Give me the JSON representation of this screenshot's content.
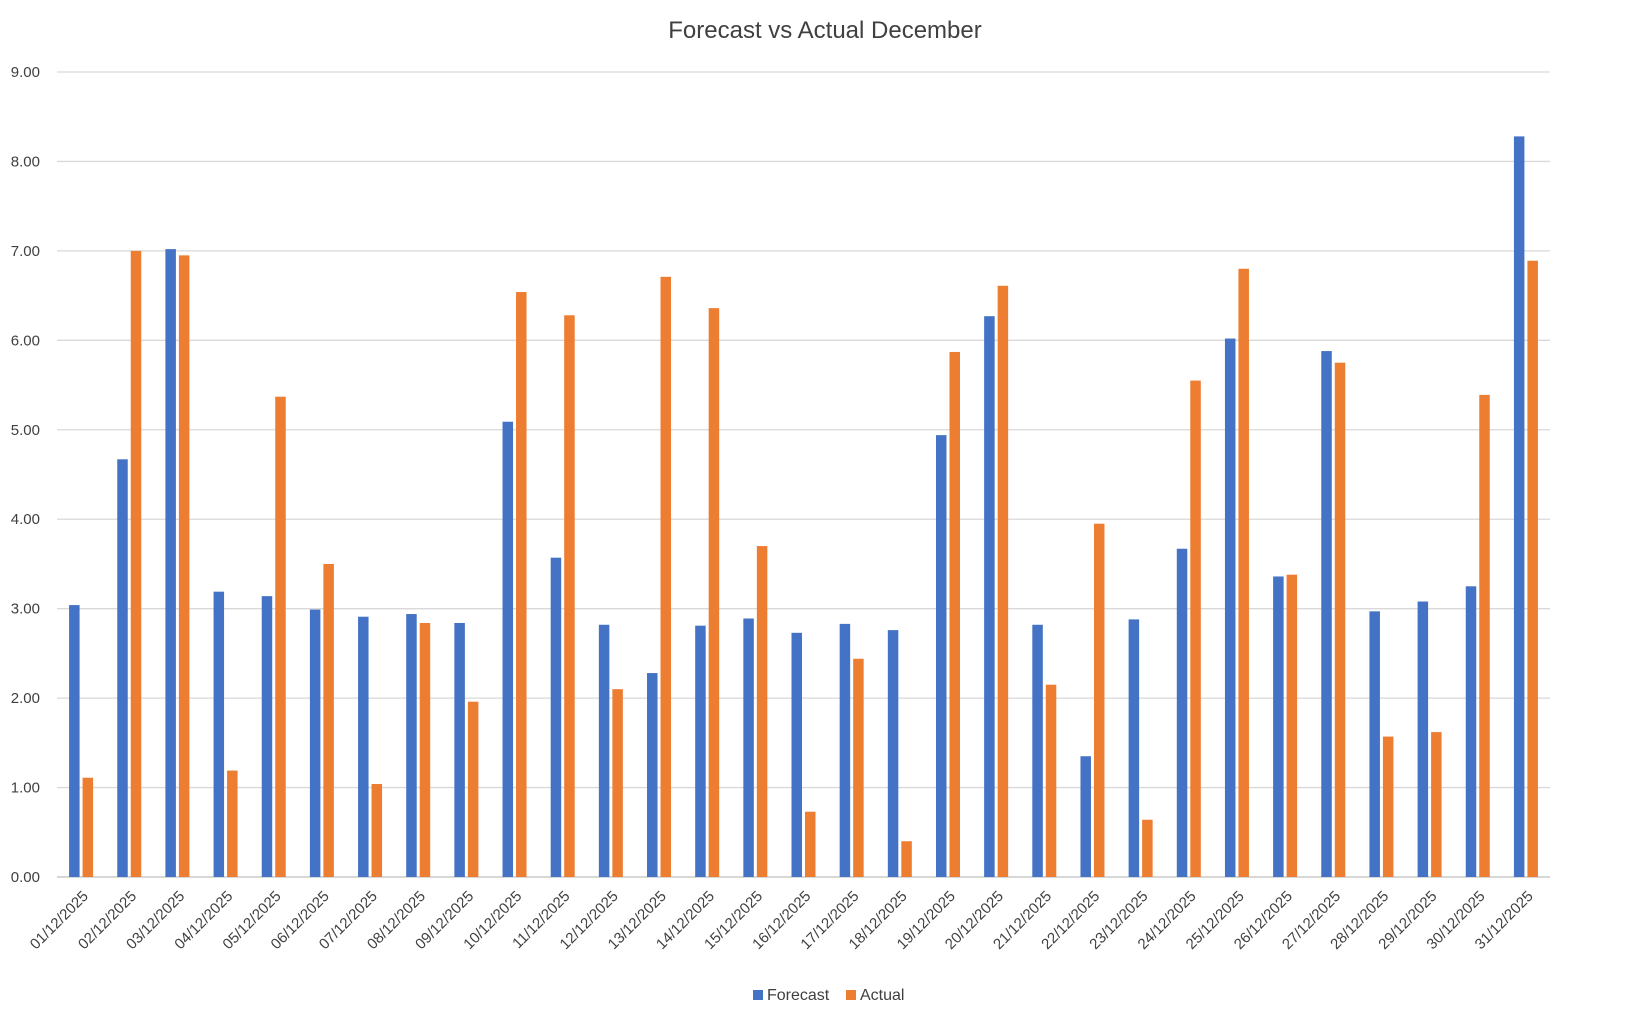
{
  "chart_data": {
    "type": "bar",
    "title": "Forecast vs Actual December",
    "xlabel": "",
    "ylabel": "",
    "ylim": [
      0,
      9
    ],
    "yticks": [
      "0.00",
      "1.00",
      "2.00",
      "3.00",
      "4.00",
      "5.00",
      "6.00",
      "7.00",
      "8.00",
      "9.00"
    ],
    "grid": true,
    "legend_position": "bottom",
    "categories": [
      "01/12/2025",
      "02/12/2025",
      "03/12/2025",
      "04/12/2025",
      "05/12/2025",
      "06/12/2025",
      "07/12/2025",
      "08/12/2025",
      "09/12/2025",
      "10/12/2025",
      "11/12/2025",
      "12/12/2025",
      "13/12/2025",
      "14/12/2025",
      "15/12/2025",
      "16/12/2025",
      "17/12/2025",
      "18/12/2025",
      "19/12/2025",
      "20/12/2025",
      "21/12/2025",
      "22/12/2025",
      "23/12/2025",
      "24/12/2025",
      "25/12/2025",
      "26/12/2025",
      "27/12/2025",
      "28/12/2025",
      "29/12/2025",
      "30/12/2025",
      "31/12/2025"
    ],
    "series": [
      {
        "name": "Forecast",
        "color": "#4472c4",
        "values": [
          3.04,
          4.67,
          7.02,
          3.19,
          3.14,
          2.99,
          2.91,
          2.94,
          2.84,
          5.09,
          3.57,
          2.82,
          2.28,
          2.81,
          2.89,
          2.73,
          2.83,
          2.76,
          4.94,
          6.27,
          2.82,
          1.35,
          2.88,
          3.67,
          6.02,
          3.36,
          5.88,
          2.97,
          3.08,
          3.25,
          8.28
        ]
      },
      {
        "name": "Actual",
        "color": "#ed7d31",
        "values": [
          1.11,
          7.0,
          6.95,
          1.19,
          5.37,
          3.5,
          1.04,
          2.84,
          1.96,
          6.54,
          6.28,
          2.1,
          6.71,
          6.36,
          3.7,
          0.73,
          2.44,
          0.4,
          5.87,
          6.61,
          2.15,
          3.95,
          0.64,
          5.55,
          6.8,
          3.38,
          5.75,
          1.57,
          1.62,
          5.39,
          6.89
        ]
      }
    ]
  }
}
